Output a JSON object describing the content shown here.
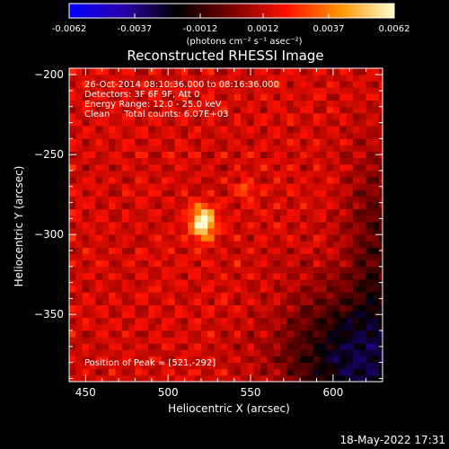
{
  "colorbar": {
    "tick_labels": [
      "-0.0062",
      "-0.0037",
      "-0.0012",
      "0.0012",
      "0.0037",
      "0.0062"
    ],
    "units": "(photons cm⁻² s⁻¹ asec⁻²)",
    "range": [
      -0.0062,
      0.0062
    ],
    "colors": [
      "#0000ff",
      "#2a00a8",
      "#000000",
      "#7a0000",
      "#ff1000",
      "#ff9400",
      "#ffffcc"
    ]
  },
  "chart_data": {
    "type": "heatmap",
    "title": "Reconstructed RHESSI Image",
    "xlabel": "Heliocentric X (arcsec)",
    "ylabel": "Heliocentric Y (arcsec)",
    "xlim": [
      440,
      630
    ],
    "ylim": [
      -392,
      -196
    ],
    "x_ticks": [
      450,
      500,
      550,
      600
    ],
    "y_ticks": [
      -200,
      -250,
      -300,
      -350
    ],
    "info_lines": [
      "26-Oct-2014 08:10:36.000 to 08:16:36.000",
      "Detectors: 3F 6F 9F, Att 0",
      "Energy Range: 12.0 - 25.0 keV",
      "Clean     Total counts: 6.07E+03"
    ],
    "peak_label": "Position of Peak = [521,-292]",
    "peak": {
      "x": 521,
      "y": -292,
      "value": 0.0062
    },
    "secondary_source": {
      "x": 547,
      "y": -272
    }
  },
  "footer": {
    "timestamp": "18-May-2022 17:31"
  }
}
